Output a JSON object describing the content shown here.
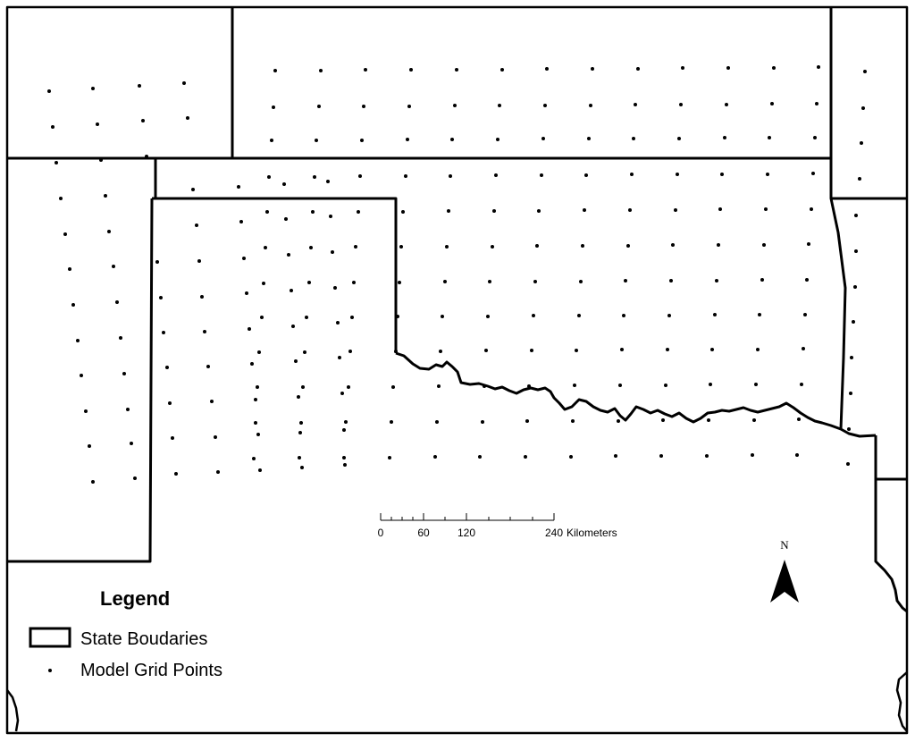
{
  "map": {
    "legend": {
      "title": "Legend",
      "items": [
        {
          "label": "State Boudaries",
          "symbol": "outline-rectangle"
        },
        {
          "label": "Model Grid Points",
          "symbol": "dot"
        }
      ]
    },
    "scale_bar": {
      "tick_labels": [
        "0",
        "60",
        "120",
        "240"
      ],
      "unit_label": "Kilometers"
    },
    "north_arrow": {
      "label": "N",
      "icon": "north-arrow-icon"
    },
    "colors": {
      "ink": "#000000",
      "background": "#ffffff"
    }
  }
}
